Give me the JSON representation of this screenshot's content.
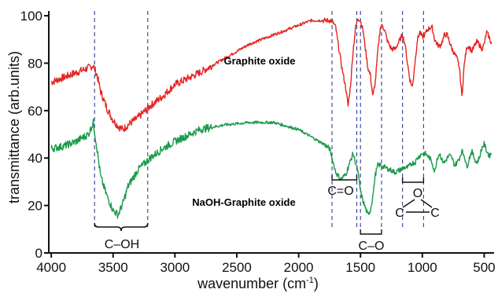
{
  "chart_data": {
    "type": "line",
    "title": "",
    "xlabel": "wavenumber (cm",
    "xlabel_sup": "-1",
    "xlabel_end": ")",
    "ylabel": "transmittance (arb.units)",
    "xlim": [
      4020,
      420
    ],
    "ylim": [
      0,
      102
    ],
    "xticks": [
      4000,
      3500,
      3000,
      2500,
      2000,
      1500,
      1000,
      500
    ],
    "yticks": [
      0,
      20,
      40,
      60,
      80,
      100
    ],
    "grid": false,
    "series": [
      {
        "name": "Graphite oxide",
        "color": "#e52320",
        "x": [
          4000,
          3900,
          3800,
          3700,
          3660,
          3630,
          3600,
          3550,
          3500,
          3450,
          3420,
          3380,
          3300,
          3200,
          3100,
          3000,
          2800,
          2600,
          2400,
          2200,
          2000,
          1900,
          1800,
          1740,
          1720,
          1700,
          1680,
          1650,
          1620,
          1600,
          1580,
          1560,
          1540,
          1520,
          1500,
          1480,
          1460,
          1440,
          1420,
          1400,
          1380,
          1360,
          1340,
          1320,
          1300,
          1280,
          1250,
          1220,
          1200,
          1180,
          1160,
          1140,
          1120,
          1100,
          1080,
          1060,
          1040,
          1020,
          1000,
          980,
          960,
          940,
          920,
          900,
          880,
          860,
          840,
          820,
          800,
          780,
          760,
          740,
          720,
          700,
          680,
          660,
          640,
          620,
          600,
          580,
          560,
          540,
          520,
          500,
          480,
          460,
          440
        ],
        "y": [
          72,
          74,
          76,
          78,
          79,
          75,
          68,
          61,
          56,
          53,
          52,
          54,
          57,
          62,
          66,
          71,
          76,
          82,
          88,
          92,
          96,
          98,
          98,
          98,
          97,
          95,
          88,
          78,
          70,
          62,
          71,
          85,
          95,
          99,
          98,
          94,
          86,
          78,
          75,
          66,
          72,
          85,
          95,
          96,
          93,
          89,
          86,
          86,
          88,
          90,
          92,
          88,
          80,
          73,
          70,
          80,
          90,
          93,
          91,
          92,
          94,
          95,
          95,
          90,
          88,
          87,
          89,
          92,
          92,
          89,
          86,
          84,
          82,
          78,
          66,
          80,
          87,
          87,
          85,
          87,
          89,
          88,
          86,
          88,
          93,
          91,
          88
        ]
      },
      {
        "name": "NaOH-Graphite oxide",
        "color": "#1c9a4a",
        "x": [
          4000,
          3900,
          3800,
          3700,
          3660,
          3630,
          3600,
          3550,
          3500,
          3460,
          3420,
          3380,
          3300,
          3200,
          3100,
          3000,
          2800,
          2600,
          2400,
          2200,
          2000,
          1900,
          1800,
          1750,
          1720,
          1700,
          1660,
          1620,
          1600,
          1560,
          1520,
          1500,
          1480,
          1460,
          1440,
          1420,
          1400,
          1380,
          1360,
          1340,
          1300,
          1260,
          1220,
          1180,
          1150,
          1120,
          1100,
          1080,
          1060,
          1040,
          1020,
          1000,
          980,
          960,
          940,
          920,
          900,
          880,
          860,
          840,
          820,
          800,
          780,
          760,
          740,
          720,
          700,
          680,
          660,
          640,
          620,
          600,
          580,
          560,
          540,
          520,
          500,
          480,
          460,
          440
        ],
        "y": [
          44,
          45,
          47,
          50,
          55,
          44,
          32,
          24,
          18,
          16,
          21,
          28,
          35,
          40,
          44,
          47,
          52,
          54,
          55,
          55,
          52,
          49,
          46,
          44,
          38,
          34,
          31,
          33,
          36,
          42,
          34,
          26,
          22,
          19,
          16,
          18,
          24,
          33,
          37,
          37,
          36,
          35,
          34,
          35,
          36,
          36,
          37,
          38,
          38,
          40,
          41,
          42,
          42,
          41,
          40,
          38,
          34,
          40,
          42,
          39,
          38,
          40,
          41,
          40,
          37,
          38,
          40,
          43,
          41,
          36,
          40,
          43,
          40,
          38,
          40,
          44,
          46,
          43,
          41,
          42
        ]
      }
    ],
    "guides": [
      3650,
      3220,
      1730,
      1530,
      1500,
      1330,
      1160,
      990
    ],
    "annotations": [
      {
        "text": "C–OH",
        "bracket": [
          3650,
          3220
        ]
      },
      {
        "text": "C=O",
        "bracket": [
          1730,
          1530
        ]
      },
      {
        "text": "C–O",
        "bracket": [
          1500,
          1330
        ]
      },
      {
        "text": "epoxide",
        "bracket": [
          1160,
          990
        ]
      }
    ],
    "labels": {
      "coh": "C–OH",
      "co_double": "C=O",
      "co_single": "C–O",
      "epoxide_o": "O",
      "epoxide_c": "C"
    }
  }
}
